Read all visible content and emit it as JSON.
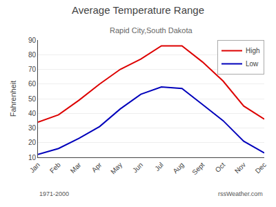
{
  "chart_data": {
    "type": "line",
    "title": "Average Temperature Range",
    "subtitle": "Rapid City,South Dakota",
    "ylabel": "Fahrenheit",
    "annotations": [
      "1971-2000",
      "rssWeather.com"
    ],
    "categories": [
      "Jan",
      "Feb",
      "Mar",
      "Apr",
      "May",
      "Jun",
      "Jul",
      "Aug",
      "Sept",
      "Oct",
      "Nov",
      "Dec"
    ],
    "series": [
      {
        "name": "High",
        "color": "#dd0000",
        "values": [
          34,
          39,
          49,
          60,
          70,
          77,
          86,
          86,
          75,
          62,
          45,
          36
        ]
      },
      {
        "name": "Low",
        "color": "#0000bb",
        "values": [
          12,
          16,
          23,
          31,
          43,
          53,
          58,
          57,
          46,
          35,
          21,
          13
        ]
      }
    ],
    "ylim": [
      10,
      90
    ],
    "yticks": [
      10,
      20,
      30,
      40,
      50,
      60,
      70,
      80,
      90
    ],
    "grid": true,
    "legend": "upper right"
  }
}
